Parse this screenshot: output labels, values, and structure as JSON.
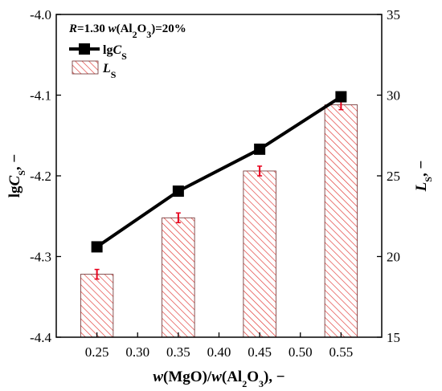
{
  "chart_data": {
    "type": "bar+line",
    "annotation_parts": [
      "R",
      "=1.30  ",
      "w",
      "(Al",
      "2",
      "O",
      "3",
      ")=20%"
    ],
    "x_ticks": [
      "0.25",
      "0.30",
      "0.35",
      "0.40",
      "0.45",
      "0.50",
      "0.55"
    ],
    "x_tick_values": [
      0.25,
      0.3,
      0.35,
      0.4,
      0.45,
      0.5,
      0.55
    ],
    "xlim": [
      0.2,
      0.6
    ],
    "xlabel_parts": [
      "w",
      "(MgO)/",
      "w",
      "(Al",
      "2",
      "O",
      "3",
      "), −"
    ],
    "y_left": {
      "lim": [
        -4.4,
        -4.0
      ],
      "ticks": [
        "-4.0",
        "-4.1",
        "-4.2",
        "-4.3",
        "-4.4"
      ],
      "tick_values": [
        -4.0,
        -4.1,
        -4.2,
        -4.3,
        -4.4
      ],
      "label_parts": [
        "lg",
        "C",
        "S",
        ", −"
      ]
    },
    "y_right": {
      "lim": [
        15,
        35
      ],
      "ticks": [
        "15",
        "20",
        "25",
        "30",
        "35"
      ],
      "tick_values": [
        15,
        20,
        25,
        30,
        35
      ],
      "label_parts": [
        "L",
        "S",
        ", −"
      ]
    },
    "series": [
      {
        "legend_parts": [
          "lg",
          "C",
          "S"
        ],
        "type": "line",
        "axis": "left",
        "x": [
          0.25,
          0.35,
          0.45,
          0.55
        ],
        "values": [
          -4.288,
          -4.219,
          -4.167,
          -4.102
        ],
        "color": "#000000",
        "marker": "square"
      },
      {
        "legend_parts": [
          "L",
          "S"
        ],
        "type": "bar",
        "axis": "right",
        "x": [
          0.25,
          0.35,
          0.45,
          0.55
        ],
        "values": [
          18.9,
          22.4,
          25.3,
          29.4
        ],
        "errors": [
          0.3,
          0.3,
          0.3,
          0.3
        ],
        "bar_width": 0.04,
        "hatch_color": "#e0322f",
        "error_color": "#e8001c"
      }
    ]
  }
}
